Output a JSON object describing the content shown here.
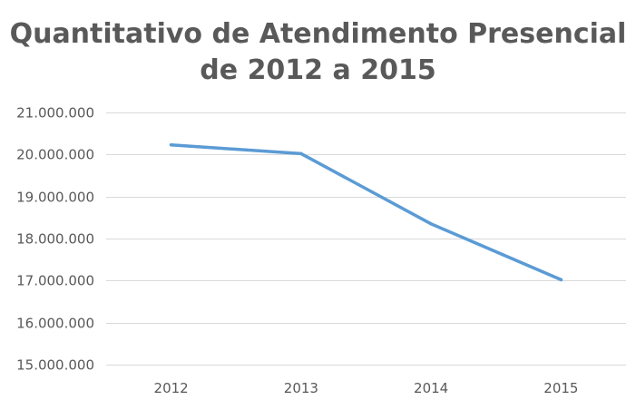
{
  "chart_data": {
    "type": "line",
    "title_lines": [
      "Quantitativo de Atendimento Presencial",
      "de 2012 a 2015"
    ],
    "categories": [
      "2012",
      "2013",
      "2014",
      "2015"
    ],
    "series": [
      {
        "values": [
          20230000,
          20020000,
          18350000,
          17020000
        ]
      }
    ],
    "ylim": [
      15000000,
      21000000
    ],
    "yticks": [
      15000000,
      16000000,
      17000000,
      18000000,
      19000000,
      20000000,
      21000000
    ],
    "ytick_labels": [
      "15.000.000",
      "16.000.000",
      "17.000.000",
      "18.000.000",
      "19.000.000",
      "20.000.000",
      "21.000.000"
    ],
    "xlabel": "",
    "ylabel": "",
    "grid": true,
    "legend": "none",
    "colors": {
      "series": "#5b9bd5",
      "grid": "#d9d9d9",
      "text": "#595959"
    }
  }
}
